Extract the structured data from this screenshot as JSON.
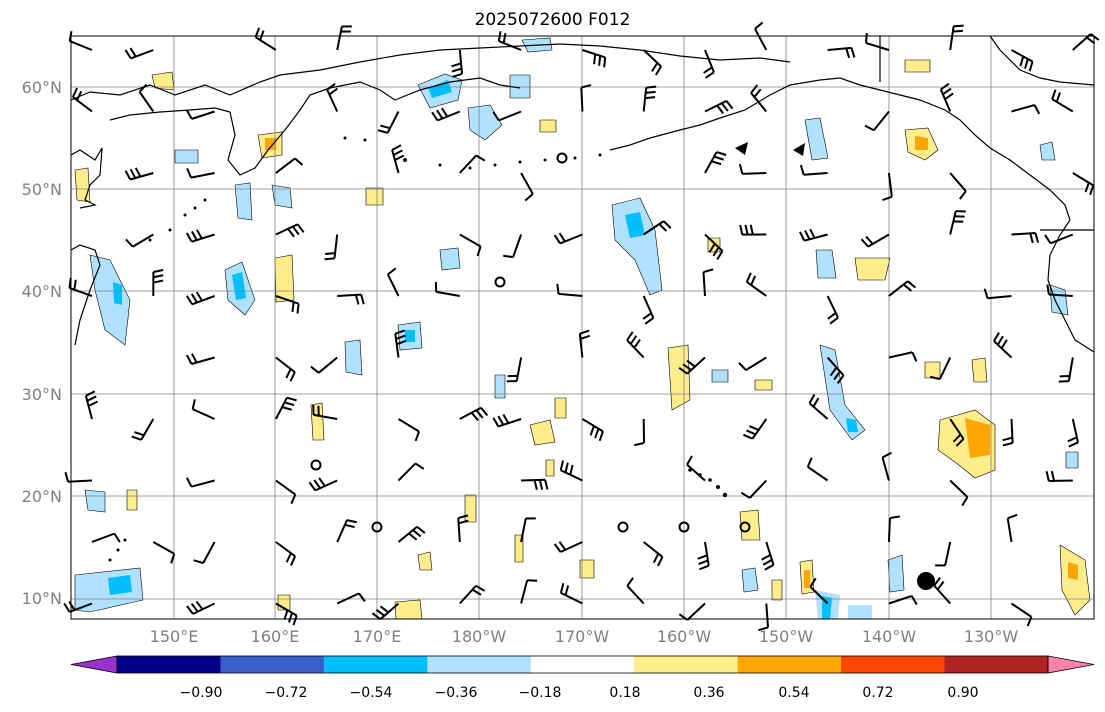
{
  "title": "2025072600 F012",
  "axes": {
    "lat_labels": [
      "10°N",
      "20°N",
      "30°N",
      "40°N",
      "50°N",
      "60°N"
    ],
    "lon_labels": [
      "150°E",
      "160°E",
      "170°E",
      "180°W",
      "170°W",
      "160°W",
      "150°W",
      "140°W",
      "130°W"
    ]
  },
  "colorbar": {
    "labels": [
      "−0.90",
      "−0.72",
      "−0.54",
      "−0.36",
      "−0.18",
      "0.18",
      "0.36",
      "0.54",
      "0.72",
      "0.90"
    ],
    "colors": [
      "#9932cc",
      "#00008b",
      "#3a5fcd",
      "#00bfff",
      "#b0e2ff",
      "#ffffff",
      "#ffec8b",
      "#ffa500",
      "#ff4500",
      "#b22222",
      "#ff82ab"
    ]
  },
  "colors": {
    "blue_light": "#b0e2ff",
    "blue_mid": "#00bfff",
    "yellow_light": "#ffec8b",
    "orange": "#ffa500",
    "grid": "#808080"
  }
}
